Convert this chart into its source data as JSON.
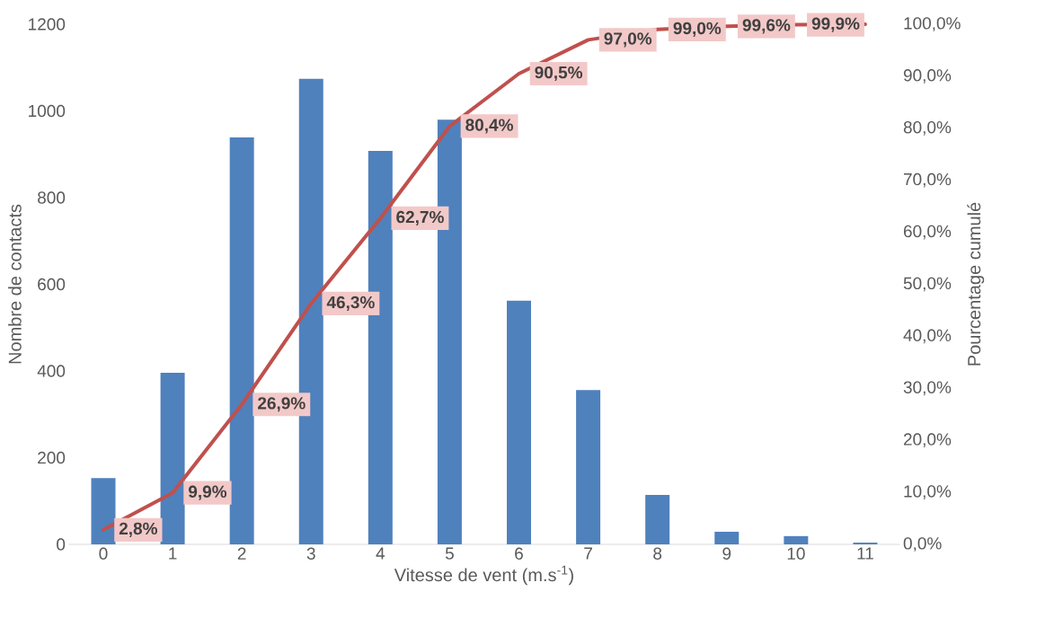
{
  "chart_data": {
    "type": "bar",
    "xlabel": "Vitesse de vent (m.s$^{-1}$)",
    "ylabel": "Nombre de contacts",
    "y2label": "Pourcentage cumulé",
    "categories": [
      "0",
      "1",
      "2",
      "3",
      "4",
      "5",
      "6",
      "7",
      "8",
      "9",
      "10",
      "11"
    ],
    "ylim": [
      0,
      1200
    ],
    "yticks": [
      0,
      200,
      400,
      600,
      800,
      1000,
      1200
    ],
    "y2lim": [
      0,
      100
    ],
    "y2ticks": [
      {
        "value": 0,
        "label": "0,0%"
      },
      {
        "value": 10,
        "label": "10,0%"
      },
      {
        "value": 20,
        "label": "20,0%"
      },
      {
        "value": 30,
        "label": "30,0%"
      },
      {
        "value": 40,
        "label": "40,0%"
      },
      {
        "value": 50,
        "label": "50,0%"
      },
      {
        "value": 60,
        "label": "60,0%"
      },
      {
        "value": 70,
        "label": "70,0%"
      },
      {
        "value": 80,
        "label": "80,0%"
      },
      {
        "value": 90,
        "label": "90,0%"
      },
      {
        "value": 100,
        "label": "100,0%"
      }
    ],
    "series": [
      {
        "color": "#4f81bd",
        "values": [
          153,
          396,
          939,
          1074,
          908,
          980,
          562,
          356,
          114,
          29,
          19,
          4
        ]
      },
      {
        "type": "line",
        "axis": "y2",
        "color": "#c0504d",
        "values": [
          2.8,
          9.9,
          26.9,
          46.3,
          62.7,
          80.4,
          90.5,
          97.0,
          99.0,
          99.6,
          99.9,
          100.0
        ],
        "value_labels": [
          "2,8%",
          "9,9%",
          "26,9%",
          "46,3%",
          "62,7%",
          "80,4%",
          "90,5%",
          "97,0%",
          "99,0%",
          "99,6%",
          "99,9%",
          null
        ]
      }
    ]
  }
}
